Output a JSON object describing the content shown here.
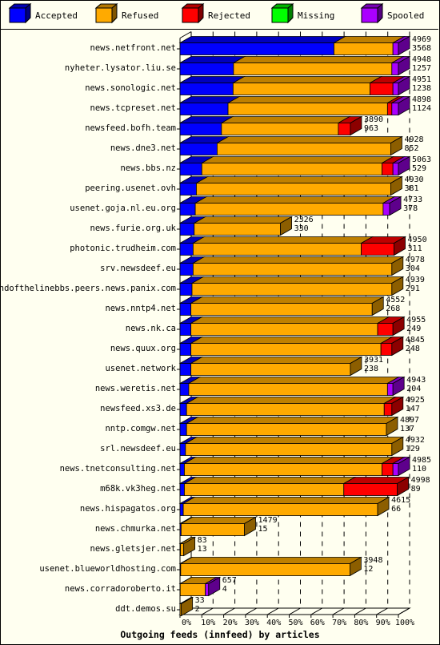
{
  "chart_data": {
    "type": "bar",
    "orientation": "horizontal",
    "stacked": true,
    "percent_scale": true,
    "title": "Outgoing feeds (innfeed) by articles",
    "xlim": [
      0,
      100
    ],
    "x_ticks": [
      "0%",
      "10%",
      "20%",
      "30%",
      "40%",
      "50%",
      "60%",
      "70%",
      "80%",
      "90%",
      "100%"
    ],
    "grid": true,
    "legend_position": "top",
    "series": [
      {
        "name": "Accepted",
        "color": "#0000ff"
      },
      {
        "name": "Refused",
        "color": "#ffaa00"
      },
      {
        "name": "Rejected",
        "color": "#ff0000"
      },
      {
        "name": "Missing",
        "color": "#00ff00"
      },
      {
        "name": "Spooled",
        "color": "#aa00ff"
      }
    ],
    "rows": [
      {
        "name": "news.netfront.net",
        "total": "4969",
        "accepted_count": "3568",
        "segments": [
          70.5,
          27.0,
          0,
          0,
          2.5
        ]
      },
      {
        "name": "nyheter.lysator.liu.se",
        "total": "4948",
        "accepted_count": "1257",
        "segments": [
          24.5,
          72.5,
          0,
          0,
          3.0
        ]
      },
      {
        "name": "news.sonologic.net",
        "total": "4951",
        "accepted_count": "1238",
        "segments": [
          24.3,
          62.7,
          10.5,
          0,
          2.5
        ]
      },
      {
        "name": "news.tcpreset.net",
        "total": "4898",
        "accepted_count": "1124",
        "segments": [
          22.0,
          73.0,
          2.0,
          0,
          3.0
        ]
      },
      {
        "name": "newsfeed.bofh.team",
        "total": "3890",
        "accepted_count": "963",
        "segments": [
          19.0,
          53.5,
          5.5,
          0,
          0
        ]
      },
      {
        "name": "news.dne3.net",
        "total": "4928",
        "accepted_count": "852",
        "segments": [
          17.0,
          79.5,
          0,
          0,
          0
        ]
      },
      {
        "name": "news.bbs.nz",
        "total": "5063",
        "accepted_count": "529",
        "segments": [
          10.0,
          82.5,
          5.0,
          0,
          2.5
        ]
      },
      {
        "name": "peering.usenet.ovh",
        "total": "4930",
        "accepted_count": "381",
        "segments": [
          7.5,
          89.0,
          0,
          0,
          0
        ]
      },
      {
        "name": "usenet.goja.nl.eu.org",
        "total": "4733",
        "accepted_count": "378",
        "segments": [
          7.0,
          86.0,
          0,
          0,
          3.0
        ]
      },
      {
        "name": "news.furie.org.uk",
        "total": "2326",
        "accepted_count": "330",
        "segments": [
          6.5,
          39.5,
          0,
          0,
          0
        ]
      },
      {
        "name": "photonic.trudheim.com",
        "total": "4950",
        "accepted_count": "311",
        "segments": [
          6.0,
          77.0,
          15.0,
          0,
          0
        ]
      },
      {
        "name": "srv.newsdeef.eu",
        "total": "4978",
        "accepted_count": "304",
        "segments": [
          6.0,
          91.0,
          0,
          0,
          0
        ]
      },
      {
        "name": "endofthelinebbs.peers.news.panix.com",
        "total": "4939",
        "accepted_count": "291",
        "segments": [
          5.5,
          91.5,
          0,
          0,
          0
        ]
      },
      {
        "name": "news.nntp4.net",
        "total": "4552",
        "accepted_count": "268",
        "segments": [
          5.0,
          83.0,
          0,
          0,
          0
        ]
      },
      {
        "name": "news.nk.ca",
        "total": "4955",
        "accepted_count": "249",
        "segments": [
          5.0,
          85.5,
          7.0,
          0,
          0
        ]
      },
      {
        "name": "news.quux.org",
        "total": "4845",
        "accepted_count": "248",
        "segments": [
          5.0,
          87.0,
          5.0,
          0,
          0
        ]
      },
      {
        "name": "usenet.network",
        "total": "3931",
        "accepted_count": "238",
        "segments": [
          5.0,
          73.0,
          0,
          0,
          0
        ]
      },
      {
        "name": "news.weretis.net",
        "total": "4943",
        "accepted_count": "204",
        "segments": [
          4.0,
          91.0,
          0,
          0,
          2.5
        ]
      },
      {
        "name": "newsfeed.xs3.de",
        "total": "4925",
        "accepted_count": "147",
        "segments": [
          3.0,
          90.5,
          3.5,
          0,
          0
        ]
      },
      {
        "name": "nntp.comgw.net",
        "total": "4897",
        "accepted_count": "137",
        "segments": [
          3.0,
          91.5,
          0,
          0,
          0
        ]
      },
      {
        "name": "srl.newsdeef.eu",
        "total": "4932",
        "accepted_count": "129",
        "segments": [
          2.5,
          94.5,
          0,
          0,
          0
        ]
      },
      {
        "name": "news.tnetconsulting.net",
        "total": "4985",
        "accepted_count": "110",
        "segments": [
          2.0,
          90.5,
          5.0,
          0,
          2.5
        ]
      },
      {
        "name": "m68k.vk3heg.net",
        "total": "4998",
        "accepted_count": "89",
        "segments": [
          2.0,
          73.0,
          24.5,
          0,
          0
        ]
      },
      {
        "name": "news.hispagatos.org",
        "total": "4615",
        "accepted_count": "66",
        "segments": [
          1.5,
          89.0,
          0,
          0,
          0
        ]
      },
      {
        "name": "news.chmurka.net",
        "total": "1479",
        "accepted_count": "15",
        "segments": [
          0.5,
          29.0,
          0,
          0,
          0
        ]
      },
      {
        "name": "news.gletsjer.net",
        "total": "83",
        "accepted_count": "13",
        "segments": [
          0.2,
          1.5,
          0,
          0,
          0
        ]
      },
      {
        "name": "usenet.blueworldhosting.com",
        "total": "3948",
        "accepted_count": "12",
        "segments": [
          0.3,
          77.5,
          0,
          0,
          0
        ]
      },
      {
        "name": "news.corradoroberto.it",
        "total": "657",
        "accepted_count": "4",
        "segments": [
          0.1,
          11.5,
          0,
          0,
          1.5
        ]
      },
      {
        "name": "ddt.demos.su",
        "total": "33",
        "accepted_count": "2",
        "segments": [
          0.0,
          0.6,
          0,
          0,
          0
        ]
      }
    ]
  }
}
